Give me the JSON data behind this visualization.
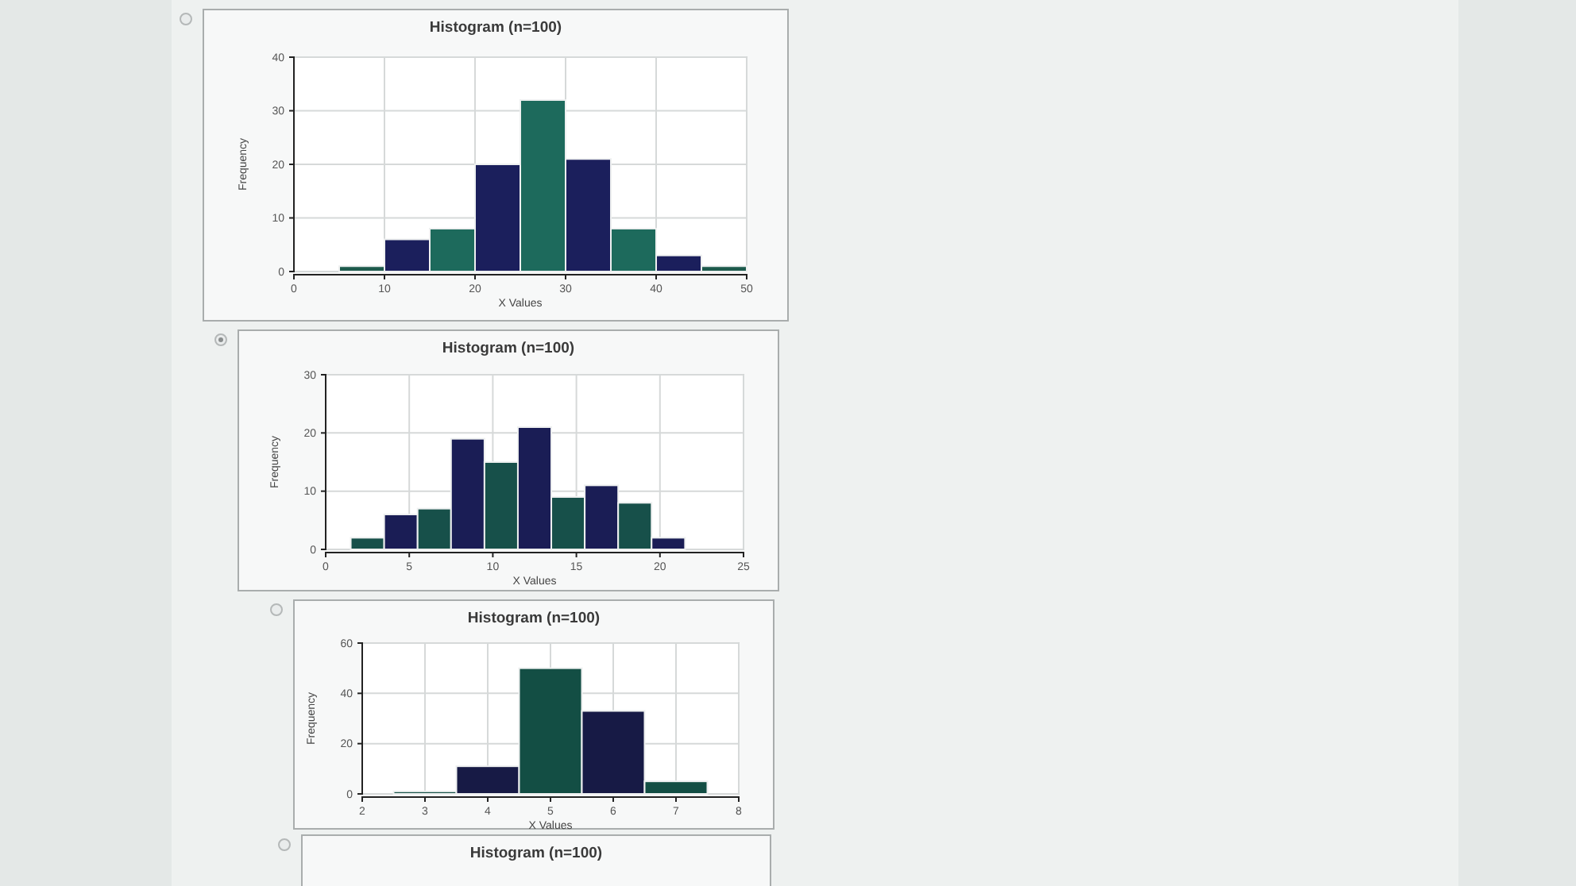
{
  "chart_data": [
    {
      "type": "histogram",
      "title": "Histogram (n=100)",
      "xlabel": "X Values",
      "ylabel": "Frequency",
      "bins": [
        5,
        10,
        15,
        20,
        25,
        30,
        35,
        40,
        45,
        50
      ],
      "values": [
        1,
        6,
        8,
        20,
        32,
        21,
        8,
        3,
        1
      ],
      "colors": [
        "#1d5a4c",
        "#1b1f5c",
        "#1d6a5c",
        "#1b1f5c",
        "#1d6a5c",
        "#1b1f5c",
        "#1d6a5c",
        "#1b1f5c",
        "#1d5a4c"
      ],
      "xlim": [
        0,
        50
      ],
      "xticks": [
        0,
        10,
        20,
        30,
        40,
        50
      ],
      "ylim": [
        0,
        40
      ],
      "yticks": [
        0,
        10,
        20,
        30,
        40
      ],
      "grid": true
    },
    {
      "type": "histogram",
      "title": "Histogram (n=100)",
      "xlabel": "X Values",
      "ylabel": "Frequency",
      "bins": [
        1.5,
        3.5,
        5.5,
        7.5,
        9.5,
        11.5,
        13.5,
        15.5,
        17.5,
        19.5,
        21.5
      ],
      "values": [
        2,
        6,
        7,
        19,
        15,
        21,
        9,
        11,
        8,
        2
      ],
      "colors": [
        "#17504a",
        "#1a1d55",
        "#17504a",
        "#1a1d55",
        "#17504a",
        "#1a1d55",
        "#17504a",
        "#1a1d55",
        "#17504a",
        "#1a1d55"
      ],
      "xlim": [
        0,
        25
      ],
      "xticks": [
        0,
        5,
        10,
        15,
        20,
        25
      ],
      "ylim": [
        0,
        30
      ],
      "yticks": [
        0,
        10,
        20,
        30
      ],
      "grid": true
    },
    {
      "type": "histogram",
      "title": "Histogram (n=100)",
      "xlabel": "X Values",
      "ylabel": "Frequency",
      "bins": [
        2.5,
        3.5,
        4.5,
        5.5,
        6.5,
        7.5
      ],
      "values": [
        1,
        11,
        50,
        33,
        5
      ],
      "colors": [
        "#134e44",
        "#171a45",
        "#134e44",
        "#171a45",
        "#134e44"
      ],
      "xlim": [
        2,
        8
      ],
      "xticks": [
        2,
        3,
        4,
        5,
        6,
        7,
        8
      ],
      "ylim": [
        0,
        60
      ],
      "yticks": [
        0,
        20,
        40,
        60
      ],
      "grid": true
    },
    {
      "type": "other",
      "title": "Histogram (n=100)"
    }
  ]
}
